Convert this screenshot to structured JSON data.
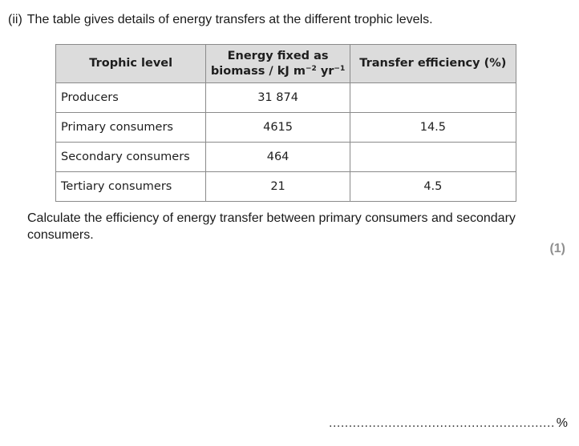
{
  "question": {
    "part_label": "(ii)",
    "intro": "The table gives details of energy transfers at the different trophic levels.",
    "prompt": "Calculate the efficiency of energy transfer between primary consumers and secondary consumers.",
    "marks": "(1)",
    "answer_dots": "...........................................................................................",
    "answer_unit": "%"
  },
  "table": {
    "headers": {
      "level": "Trophic level",
      "energy_line1": "Energy fixed as",
      "energy_line2": "biomass / kJ m",
      "energy_exp1": "−2",
      "energy_mid": " yr",
      "energy_exp2": "−1",
      "efficiency": "Transfer efficiency (%)"
    },
    "rows": [
      {
        "level": "Producers",
        "energy": "31 874",
        "efficiency": ""
      },
      {
        "level": "Primary consumers",
        "energy": "4615",
        "efficiency": "14.5"
      },
      {
        "level": "Secondary consumers",
        "energy": "464",
        "efficiency": ""
      },
      {
        "level": "Tertiary consumers",
        "energy": "21",
        "efficiency": "4.5"
      }
    ]
  }
}
